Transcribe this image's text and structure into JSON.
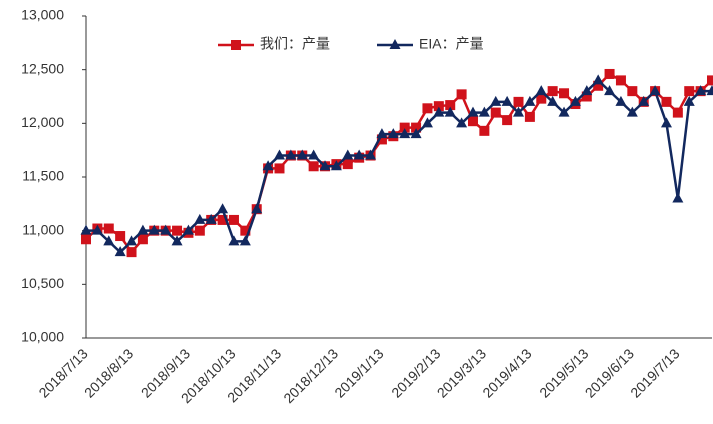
{
  "chart_data": {
    "type": "line",
    "categories": [
      "2018/7/13",
      null,
      null,
      null,
      "2018/8/13",
      null,
      null,
      null,
      null,
      "2018/9/13",
      null,
      null,
      null,
      "2018/10/13",
      null,
      null,
      null,
      "2018/11/13",
      null,
      null,
      null,
      null,
      "2018/12/13",
      null,
      null,
      null,
      "2019/1/13",
      null,
      null,
      null,
      null,
      "2019/2/13",
      null,
      null,
      null,
      "2019/3/13",
      null,
      null,
      null,
      "2019/4/13",
      null,
      null,
      null,
      null,
      "2019/5/13",
      null,
      null,
      null,
      "2019/6/13",
      null,
      null,
      null,
      "2019/7/13",
      null,
      null,
      null
    ],
    "series": [
      {
        "name": "我们：产量",
        "color": "#d0121b",
        "marker": "square",
        "values": [
          10920,
          11020,
          11020,
          10950,
          10800,
          10920,
          11000,
          11000,
          11000,
          10980,
          11000,
          11100,
          11100,
          11100,
          11000,
          11200,
          11580,
          11580,
          11700,
          11700,
          11600,
          11600,
          11620,
          11620,
          11680,
          11700,
          11850,
          11880,
          11960,
          11960,
          12140,
          12160,
          12170,
          12270,
          12020,
          11930,
          12100,
          12030,
          12200,
          12060,
          12230,
          12300,
          12280,
          12180,
          12250,
          12350,
          12460,
          12400,
          12300,
          12200,
          12300,
          12200,
          12100,
          12300,
          12300,
          12400
        ]
      },
      {
        "name": "EIA：产量",
        "color": "#12285e",
        "marker": "triangle",
        "values": [
          11000,
          11000,
          10900,
          10800,
          10900,
          11000,
          11000,
          11000,
          10900,
          11000,
          11100,
          11100,
          11200,
          10900,
          10900,
          11200,
          11600,
          11700,
          11700,
          11700,
          11700,
          11600,
          11600,
          11700,
          11700,
          11700,
          11900,
          11900,
          11900,
          11900,
          12000,
          12100,
          12100,
          12000,
          12100,
          12100,
          12200,
          12200,
          12100,
          12200,
          12300,
          12200,
          12100,
          12200,
          12300,
          12400,
          12300,
          12200,
          12100,
          12200,
          12300,
          12000,
          11300,
          12200,
          12300,
          12300
        ]
      }
    ],
    "ylim": [
      10000,
      13000
    ],
    "yticks": [
      {
        "value": 10000,
        "label": "10,000"
      },
      {
        "value": 10500,
        "label": "10,500"
      },
      {
        "value": 11000,
        "label": "11,000"
      },
      {
        "value": 11500,
        "label": "11,500"
      },
      {
        "value": 12000,
        "label": "12,000"
      },
      {
        "value": 12500,
        "label": "12,500"
      },
      {
        "value": 13000,
        "label": "13,000"
      }
    ],
    "grid": false,
    "legend": "top"
  }
}
